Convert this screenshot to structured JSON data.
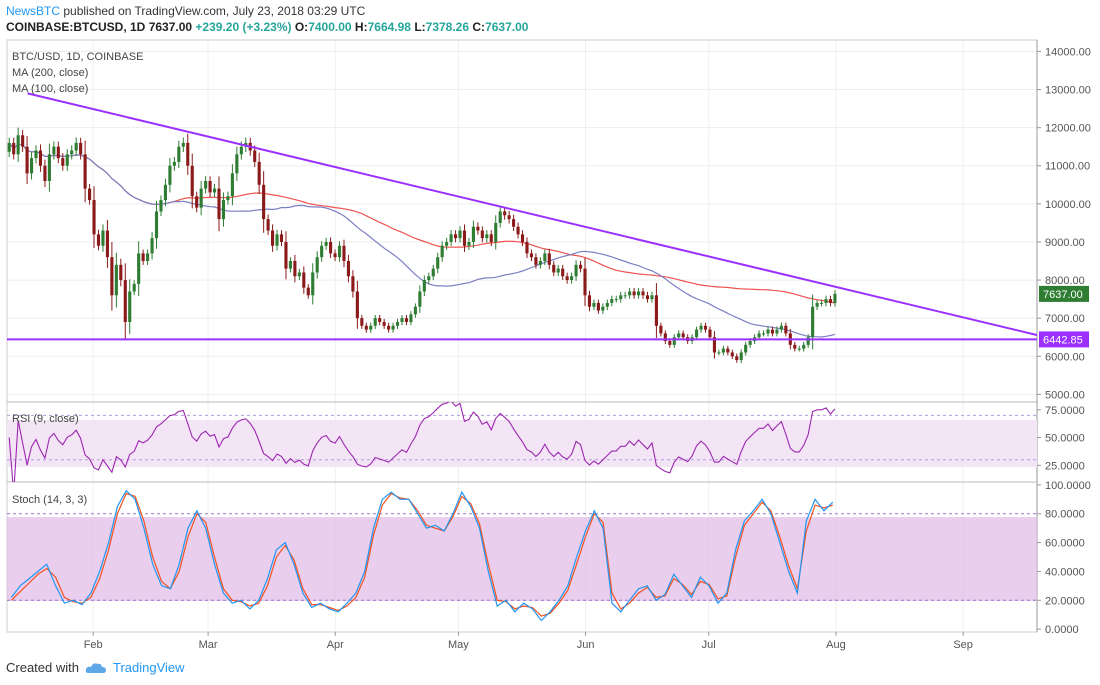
{
  "header": {
    "publisher": "NewsBTC",
    "published_text": "published on TradingView.com, July 23, 2018 03:29 UTC",
    "symbol_line": "COINBASE:BTCUSD, 1D",
    "last": "7637.00",
    "change": "+239.20 (+3.23%)",
    "o_label": "O:",
    "o": "7400.00",
    "h_label": "H:",
    "h": "7664.98",
    "l_label": "L:",
    "l": "7378.26",
    "c_label": "C:",
    "c": "7637.00"
  },
  "legend": {
    "title": "BTC/USD, 1D, COINBASE",
    "ma200": "MA (200, close)",
    "ma100": "MA (100, close)"
  },
  "footer": {
    "created_with": "Created with",
    "brand": "TradingView"
  },
  "colors": {
    "up": "#26a69a",
    "down": "#8b1a1a",
    "up_body": "#2e7d32",
    "ma200": "#ef5350",
    "ma100": "#7b7fc4",
    "trendline": "#9b30ff",
    "rsi": "#9c27b0",
    "stoch_k": "#2196f3",
    "stoch_d": "#f4511e"
  },
  "chart_data": [
    {
      "type": "candlestick",
      "title": "BTC/USD, 1D, COINBASE",
      "x_ticks": [
        "Feb",
        "Mar",
        "Apr",
        "May",
        "Jun",
        "Jul",
        "Aug",
        "Sep"
      ],
      "y_ticks": [
        "14000.00",
        "13000.00",
        "12000.00",
        "11000.00",
        "10000.00",
        "9000.00",
        "8000.00",
        "7000.00",
        "6000.00",
        "5000.00"
      ],
      "ylim": [
        4800,
        14300
      ],
      "last_price_label": "7637.00",
      "support_label": "6442.85",
      "support": 6442.85,
      "trendline": {
        "from": [
          "2018-01-16",
          12900
        ],
        "to": [
          "2018-09-22",
          6480
        ]
      },
      "closes": [
        11600,
        11300,
        11800,
        11500,
        10800,
        11200,
        11400,
        11000,
        10600,
        11300,
        11500,
        11200,
        11000,
        11300,
        11400,
        11600,
        11300,
        10400,
        10100,
        9200,
        8900,
        9300,
        8600,
        7600,
        8400,
        8000,
        6900,
        7700,
        7900,
        8700,
        8500,
        8700,
        9100,
        9800,
        10100,
        10500,
        11000,
        11100,
        11500,
        11600,
        11000,
        10200,
        9900,
        10400,
        10600,
        10300,
        10400,
        9600,
        10100,
        10200,
        10800,
        11300,
        11500,
        11600,
        11400,
        11100,
        10500,
        9600,
        9300,
        8900,
        9200,
        9000,
        8300,
        8500,
        8100,
        8200,
        7800,
        7600,
        8200,
        8600,
        8900,
        9000,
        8700,
        8600,
        8900,
        8500,
        8100,
        7700,
        7000,
        6800,
        6700,
        6800,
        7000,
        6900,
        6800,
        6700,
        6800,
        6900,
        7000,
        6900,
        7100,
        7300,
        7700,
        8000,
        8100,
        8300,
        8600,
        8900,
        9000,
        9200,
        9100,
        9300,
        8900,
        9000,
        9400,
        9300,
        9100,
        9200,
        9000,
        9500,
        9800,
        9700,
        9600,
        9400,
        9200,
        9000,
        8700,
        8600,
        8400,
        8500,
        8700,
        8400,
        8200,
        8300,
        8100,
        8000,
        8100,
        8400,
        8300,
        7600,
        7300,
        7400,
        7200,
        7300,
        7400,
        7500,
        7500,
        7600,
        7600,
        7700,
        7600,
        7700,
        7600,
        7500,
        7600,
        6800,
        6600,
        6400,
        6300,
        6500,
        6600,
        6500,
        6400,
        6500,
        6700,
        6800,
        6700,
        6500,
        6100,
        6100,
        6200,
        6100,
        6000,
        5900,
        6100,
        6300,
        6400,
        6500,
        6600,
        6600,
        6700,
        6600,
        6700,
        6800,
        6600,
        6300,
        6200,
        6200,
        6300,
        6500,
        7300,
        7400,
        7400,
        7500,
        7400,
        7637
      ]
    },
    {
      "type": "line",
      "title": "RSI (9, close)",
      "y_ticks": [
        "75.0000",
        "50.0000",
        "25.0000"
      ],
      "ylim": [
        10,
        82
      ],
      "bands": [
        30,
        70
      ]
    },
    {
      "type": "line",
      "title": "Stoch (14, 3, 3)",
      "y_ticks": [
        "100.0000",
        "80.0000",
        "60.0000",
        "40.0000",
        "20.0000",
        "0.0000"
      ],
      "ylim": [
        -2,
        102
      ],
      "bands": [
        20,
        80
      ],
      "series": [
        {
          "name": "%K",
          "values": [
            22,
            30,
            35,
            40,
            45,
            30,
            18,
            20,
            17,
            25,
            40,
            60,
            85,
            96,
            90,
            70,
            45,
            30,
            28,
            45,
            70,
            82,
            70,
            45,
            25,
            18,
            20,
            14,
            20,
            35,
            55,
            60,
            45,
            25,
            15,
            18,
            14,
            12,
            18,
            25,
            40,
            70,
            90,
            95,
            90,
            90,
            80,
            70,
            72,
            68,
            80,
            95,
            85,
            70,
            40,
            16,
            20,
            12,
            18,
            14,
            6,
            12,
            20,
            30,
            50,
            68,
            82,
            70,
            18,
            12,
            20,
            28,
            30,
            20,
            24,
            38,
            30,
            22,
            36,
            30,
            18,
            25,
            55,
            75,
            82,
            90,
            80,
            60,
            40,
            25,
            75,
            90,
            82,
            88
          ]
        },
        {
          "name": "%D",
          "values": [
            20,
            26,
            32,
            38,
            42,
            36,
            22,
            19,
            18,
            22,
            35,
            55,
            80,
            94,
            92,
            75,
            50,
            33,
            28,
            40,
            64,
            80,
            74,
            50,
            28,
            20,
            19,
            16,
            18,
            30,
            50,
            58,
            48,
            28,
            17,
            17,
            15,
            13,
            16,
            22,
            36,
            65,
            86,
            94,
            91,
            90,
            82,
            72,
            70,
            68,
            78,
            92,
            87,
            73,
            45,
            20,
            19,
            14,
            16,
            15,
            9,
            11,
            18,
            27,
            45,
            64,
            80,
            74,
            25,
            14,
            18,
            25,
            29,
            22,
            23,
            35,
            31,
            24,
            33,
            31,
            21,
            23,
            50,
            72,
            80,
            88,
            82,
            64,
            44,
            28,
            68,
            86,
            84,
            86
          ]
        }
      ]
    }
  ]
}
